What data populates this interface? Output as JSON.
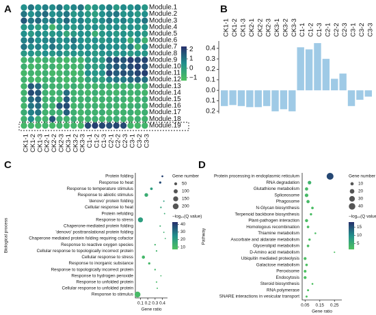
{
  "chart_data": [
    {
      "type": "heatmap",
      "panel": "A",
      "rows": [
        "Module.1",
        "Module.2",
        "Module.3",
        "Module.4",
        "Module.5",
        "Module.6",
        "Module.7",
        "Module.8",
        "Module.9",
        "Module.10",
        "Module.11",
        "Module.12",
        "Module.13",
        "Module.14",
        "Module.15",
        "Module.16",
        "Module.17",
        "Module.18",
        "Module.19"
      ],
      "columns": [
        "CK1-1",
        "CK1-2",
        "CK1-3",
        "CK2-1",
        "CK2-2",
        "CK2-3",
        "CK3-1",
        "CK3-2",
        "CK3-3",
        "C1-1",
        "C1-2",
        "C1-3",
        "C2-1",
        "C2-2",
        "C2-3",
        "C3-1",
        "C3-2",
        "C3-3"
      ],
      "values": [
        [
          0.5,
          1,
          0.5,
          0.8,
          0.6,
          1,
          0.4,
          0.7,
          1,
          0,
          0.3,
          0.5,
          0.8,
          0.2,
          0.6,
          0.5,
          0.7,
          0.3
        ],
        [
          1,
          0.5,
          0.8,
          1.2,
          0.5,
          0.7,
          1,
          0.3,
          0.6,
          0.2,
          0,
          0.5,
          0.8,
          1,
          0.4,
          0.6,
          0.2,
          0.5
        ],
        [
          1.5,
          1,
          1.2,
          0.8,
          1,
          0.6,
          1.2,
          0.5,
          0.8,
          0.4,
          0.3,
          0.6,
          1,
          0.5,
          0.8,
          0.4,
          0.6,
          1
        ],
        [
          0.3,
          0.5,
          0,
          0.5,
          -0.8,
          0.3,
          0.5,
          0.2,
          0.6,
          0.3,
          0.5,
          0.2,
          0.4,
          0.6,
          0.2,
          0.5,
          0.3,
          0.4
        ],
        [
          0.5,
          0.2,
          0.6,
          0.4,
          0.3,
          0.5,
          -0.3,
          0.2,
          0.5,
          0.4,
          -0.5,
          0.3,
          0.5,
          0.2,
          0.4,
          0.3,
          0.5,
          0.2
        ],
        [
          0.8,
          1,
          0.5,
          0.7,
          0.9,
          0.4,
          0.6,
          1,
          0.5,
          0.3,
          0.5,
          0.2,
          0.6,
          0.4,
          0.5,
          -0.5,
          0.4,
          -0.6
        ],
        [
          1,
          0.6,
          0.8,
          0.5,
          1,
          0.7,
          0.4,
          0.8,
          0.6,
          0.5,
          0.3,
          0.7,
          0.5,
          0.6,
          0.4,
          0.8,
          -0.6,
          0.5
        ],
        [
          0.2,
          0.4,
          0.1,
          0.5,
          0.3,
          0.6,
          0.2,
          0.4,
          0.3,
          0.5,
          0.2,
          0.4,
          0.6,
          0.3,
          0.5,
          0.2,
          0.4,
          0.3
        ],
        [
          -0.8,
          -0.5,
          -0.9,
          -0.6,
          -0.8,
          -0.7,
          -0.9,
          -0.6,
          -0.8,
          0,
          0.2,
          0.1,
          1.5,
          1.8,
          1.6,
          2,
          1.8,
          1.9
        ],
        [
          -0.6,
          -0.9,
          -0.7,
          -0.8,
          -0.6,
          -0.9,
          -0.7,
          -0.8,
          -0.6,
          0.2,
          0,
          0.3,
          1.2,
          1.6,
          1.4,
          1.8,
          2,
          1.7
        ],
        [
          -0.9,
          -0.7,
          -0.8,
          -0.6,
          -0.9,
          -0.8,
          -0.6,
          -0.9,
          -0.7,
          0.5,
          0.3,
          0.4,
          1.8,
          1.5,
          1.7,
          1.6,
          1.9,
          2
        ],
        [
          -0.7,
          -0.8,
          -0.9,
          -0.7,
          -0.6,
          -0.8,
          -0.9,
          -0.7,
          -0.8,
          -0.2,
          0,
          -0.1,
          0.8,
          1,
          0.9,
          1.2,
          1.4,
          1.1
        ],
        [
          -0.8,
          1.5,
          1.2,
          -0.5,
          -0.7,
          -0.6,
          -0.8,
          -0.5,
          -0.7,
          -0.6,
          -0.8,
          -0.5,
          -0.7,
          -0.6,
          -0.8,
          -0.5,
          -0.7,
          -0.6
        ],
        [
          -0.7,
          1.8,
          1.6,
          -0.6,
          -0.8,
          -0.5,
          1.2,
          -0.7,
          -0.6,
          -0.8,
          -0.5,
          -0.7,
          -0.6,
          -0.8,
          -0.5,
          -0.7,
          -0.6,
          -0.8
        ],
        [
          -0.6,
          1.2,
          1.4,
          -0.7,
          -0.5,
          -0.8,
          1.5,
          -0.6,
          -0.7,
          -0.5,
          -0.8,
          -0.6,
          -0.7,
          -0.5,
          -0.6,
          -0.8,
          -0.7,
          -0.5
        ],
        [
          -0.8,
          1,
          1.2,
          -0.6,
          -0.7,
          1.6,
          1.8,
          -0.8,
          -0.6,
          -0.7,
          -0.6,
          -0.8,
          -0.5,
          -0.7,
          -0.8,
          -0.6,
          -0.5,
          -0.7
        ],
        [
          -0.5,
          0.8,
          1,
          -0.7,
          -0.6,
          -0.5,
          1.4,
          -0.6,
          -0.8,
          -0.6,
          -0.7,
          -0.5,
          -0.8,
          -0.6,
          -0.7,
          -0.5,
          -0.8,
          -0.6
        ],
        [
          -0.7,
          0.6,
          -0.5,
          -0.8,
          1.6,
          -0.6,
          -0.7,
          -0.5,
          -0.8,
          -0.7,
          -0.6,
          -0.8,
          -0.6,
          -0.5,
          -0.7,
          -0.8,
          -0.6,
          -0.7
        ],
        [
          -0.9,
          -0.8,
          -0.9,
          -0.8,
          -0.9,
          -0.8,
          -0.9,
          -0.8,
          -0.9,
          1.8,
          2,
          1.9,
          1.7,
          1.9,
          1.8,
          -0.8,
          -0.9,
          -0.8
        ]
      ],
      "clim": [
        -1.3,
        2.3
      ],
      "color_ticks": [
        {
          "value": -1,
          "label": "−1"
        },
        0,
        1,
        2
      ]
    },
    {
      "type": "bar",
      "panel": "B",
      "color": "#9fcae6",
      "categories": [
        "CK1-1",
        "CK1-2",
        "CK1-3",
        "CK2-1",
        "CK2-2",
        "CK2-3",
        "CK3-1",
        "CK3-2",
        "CK3-3",
        "C1-1",
        "C1-2",
        "C1-3",
        "C2-1",
        "C2-2",
        "C2-3",
        "C3-1",
        "C3-2",
        "C3-3"
      ],
      "values": [
        -0.15,
        -0.14,
        -0.15,
        -0.16,
        -0.16,
        -0.15,
        -0.2,
        -0.18,
        -0.2,
        0.41,
        0.39,
        0.45,
        0.3,
        0.11,
        0.16,
        -0.15,
        -0.09,
        -0.06
      ],
      "ylim": [
        -0.22,
        0.47
      ],
      "yticks": [
        0.4,
        0.3,
        0.2,
        0.1,
        {
          "value": 0,
          "label": "0.0"
        },
        {
          "value": -0.1,
          "label": "0.1"
        },
        {
          "value": -0.2,
          "label": "0.2"
        }
      ]
    },
    {
      "type": "scatter",
      "panel": "C",
      "ylabel": "Biological process",
      "xlabel": "Gene ratio",
      "terms": [
        "Protein folding",
        "Response to heat",
        "Response to temperature stimulus",
        "Response to abiotic stimulus",
        "'denovo' protein folding",
        "Cellular response to heat",
        "Protein refolding",
        "Response to stress",
        "Chaperone-mediated protein folding",
        "'denovo' posttranslational protein folding",
        "Chaperone mediated protein folding requiring cofactor",
        "Response to reactive oxygen species",
        "Cellular response to topologically incorrect protein",
        "Cellular response to stress",
        "Response to inorganic substance",
        "Response to topologically incorrect protein",
        "Response to hydrogen peroxide",
        "Response to unfolded protein",
        "Cellular response to unfolded protein",
        "Response to stimulus"
      ],
      "x": [
        0.4,
        0.37,
        0.25,
        0.18,
        0.42,
        0.38,
        0.43,
        0.1,
        0.37,
        0.42,
        0.44,
        0.3,
        0.32,
        0.14,
        0.22,
        0.3,
        0.38,
        0.32,
        0.33,
        0.06
      ],
      "sizes": [
        20,
        30,
        40,
        80,
        12,
        15,
        10,
        150,
        12,
        10,
        9,
        14,
        14,
        60,
        30,
        15,
        9,
        12,
        11,
        200
      ],
      "colors": [
        40,
        38,
        20,
        15,
        20,
        18,
        15,
        20,
        14,
        14,
        13,
        12,
        12,
        11,
        11,
        11,
        11,
        10,
        10,
        10
      ],
      "xlim": [
        0.03,
        0.47
      ],
      "xticks": [
        0.1,
        0.2,
        0.3,
        0.4
      ],
      "size_title": "Gene number",
      "size_ticks": [
        50,
        100,
        150,
        200
      ],
      "color_title": "−log₁₀(Q value)",
      "color_ticks": [
        40,
        30,
        20,
        10
      ],
      "clim": [
        7,
        43
      ]
    },
    {
      "type": "scatter",
      "panel": "D",
      "ylabel": "Pathway",
      "xlabel": "Gene ratio",
      "terms": [
        "Protein processing in endoplasmic reticulum",
        "RNA degradation",
        "Glutathione metabolism",
        "Spliceosome",
        "Phagosome",
        "N-Glycan biosynthesis",
        "Terpenoid backbone biosynthesis",
        "Plant-pathogen interaction",
        "Homologous recombination",
        "Thiamine metabolism",
        "Ascorbate and aldarate metabolism",
        "Glycerolipid metabolism",
        "D-Amino acid metabolism",
        "Ubiquitin mediated proteolysis",
        "Galactose metabolism",
        "Peroxisome",
        "Endocytosis",
        "Steroid biosynthesis",
        "RNA polymerase",
        "SNARE interactions in vesicular transport"
      ],
      "x": [
        0.22,
        0.08,
        0.06,
        0.06,
        0.07,
        0.1,
        0.09,
        0.06,
        0.07,
        0.12,
        0.08,
        0.07,
        0.25,
        0.05,
        0.06,
        0.05,
        0.05,
        0.1,
        0.07,
        0.06
      ],
      "sizes": [
        45,
        12,
        10,
        12,
        10,
        6,
        5,
        9,
        6,
        3,
        5,
        6,
        2,
        8,
        6,
        7,
        8,
        3,
        4,
        4
      ],
      "colors": [
        16,
        4,
        3,
        3,
        3,
        2.5,
        2.5,
        2.5,
        2.3,
        2.2,
        2.2,
        2.1,
        2,
        2,
        2,
        1.9,
        1.9,
        1.8,
        1.8,
        1.8
      ],
      "xlim": [
        0.03,
        0.3
      ],
      "xticks": [
        0.05,
        0.15,
        0.25
      ],
      "size_title": "Gene number",
      "size_ticks": [
        10,
        20,
        30,
        40
      ],
      "color_title": "−log₁₀(Q value)",
      "color_ticks": [
        15,
        10,
        5
      ],
      "clim": [
        1.5,
        18
      ]
    }
  ]
}
